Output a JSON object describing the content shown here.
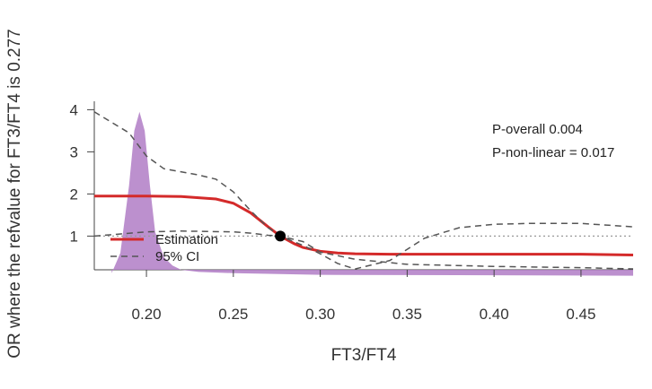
{
  "chart_data": {
    "type": "line",
    "xlabel": "FT3/FT4",
    "ylabel": "OR where the refvalue for FT3/FT4 is 0.277",
    "xlim": [
      0.17,
      0.48
    ],
    "ylim": [
      0.2,
      4.2
    ],
    "x_ticks": [
      "0.20",
      "0.25",
      "0.30",
      "0.35",
      "0.40",
      "0.45"
    ],
    "x_tick_values": [
      0.2,
      0.25,
      0.3,
      0.35,
      0.4,
      0.45
    ],
    "y_ticks": [
      "1",
      "2",
      "3",
      "4"
    ],
    "y_tick_values": [
      1,
      2,
      3,
      4
    ],
    "reference_line_y": 1,
    "reference_point": {
      "x": 0.277,
      "y": 1
    },
    "annotations": [
      "P-overall 0.004",
      "P-non-linear = 0.017"
    ],
    "legend": {
      "position": "bottom-left",
      "entries": [
        "Estimation",
        "95% CI"
      ]
    },
    "series": [
      {
        "name": "Estimation",
        "color": "#d42a2a",
        "style": "solid",
        "x": [
          0.17,
          0.2,
          0.22,
          0.24,
          0.25,
          0.26,
          0.27,
          0.277,
          0.285,
          0.29,
          0.3,
          0.31,
          0.32,
          0.34,
          0.36,
          0.4,
          0.45,
          0.48
        ],
        "y": [
          1.95,
          1.95,
          1.94,
          1.88,
          1.78,
          1.55,
          1.22,
          1.0,
          0.82,
          0.73,
          0.64,
          0.6,
          0.58,
          0.57,
          0.57,
          0.57,
          0.57,
          0.55
        ]
      },
      {
        "name": "95% CI",
        "color": "#555555",
        "style": "dashed",
        "x": [
          0.17,
          0.19,
          0.2,
          0.21,
          0.23,
          0.24,
          0.25,
          0.26,
          0.27,
          0.277,
          0.29,
          0.3,
          0.31,
          0.32,
          0.34,
          0.36,
          0.38,
          0.4,
          0.42,
          0.45,
          0.48
        ],
        "y": [
          3.95,
          3.45,
          2.9,
          2.6,
          2.45,
          2.35,
          2.05,
          1.6,
          1.2,
          1.0,
          0.78,
          0.58,
          0.35,
          0.22,
          0.42,
          0.95,
          1.2,
          1.28,
          1.3,
          1.3,
          1.22
        ]
      },
      {
        "name": "95% CI lower",
        "color": "#555555",
        "style": "dashed",
        "x": [
          0.17,
          0.2,
          0.22,
          0.25,
          0.26,
          0.27,
          0.277,
          0.29,
          0.3,
          0.32,
          0.35,
          0.4,
          0.45,
          0.48
        ],
        "y": [
          1.0,
          1.1,
          1.12,
          1.1,
          1.07,
          1.02,
          1.0,
          0.87,
          0.62,
          0.45,
          0.33,
          0.28,
          0.25,
          0.22
        ]
      }
    ],
    "density": {
      "color": "#b07cc6",
      "x": [
        0.18,
        0.185,
        0.19,
        0.193,
        0.196,
        0.199,
        0.202,
        0.205,
        0.21,
        0.215,
        0.22,
        0.23,
        0.25,
        0.3,
        0.4,
        0.48
      ],
      "y": [
        0.12,
        0.6,
        2.2,
        3.5,
        3.95,
        3.5,
        2.2,
        1.1,
        0.5,
        0.3,
        0.2,
        0.15,
        0.12,
        0.08,
        0.07,
        0.06
      ]
    }
  }
}
